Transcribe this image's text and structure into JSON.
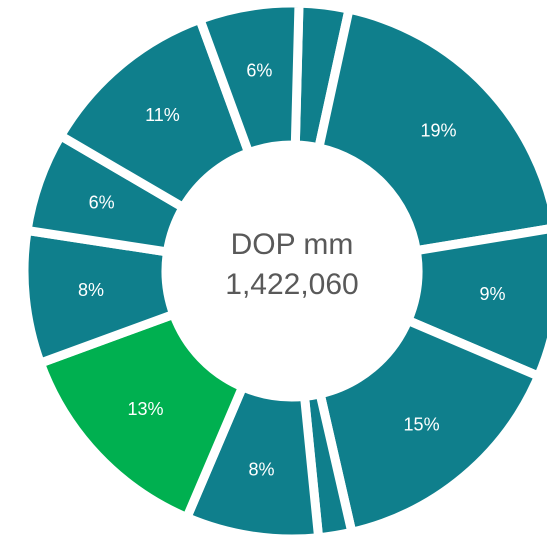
{
  "chart_data": {
    "type": "donut",
    "center_text": [
      "DOP mm",
      "1,422,060"
    ],
    "values": [
      3,
      19,
      9,
      15,
      2,
      8,
      13,
      8,
      6,
      11,
      6
    ],
    "value_labels": [
      null,
      "19%",
      "9%",
      "15%",
      null,
      "8%",
      "13%",
      "8%",
      "6%",
      "11%",
      "6%"
    ],
    "colors": [
      "#0f7f8c",
      "#0f7f8c",
      "#0f7f8c",
      "#0f7f8c",
      "#0f7f8c",
      "#0f7f8c",
      "#00b050",
      "#0f7f8c",
      "#0f7f8c",
      "#0f7f8c",
      "#0f7f8c"
    ]
  }
}
